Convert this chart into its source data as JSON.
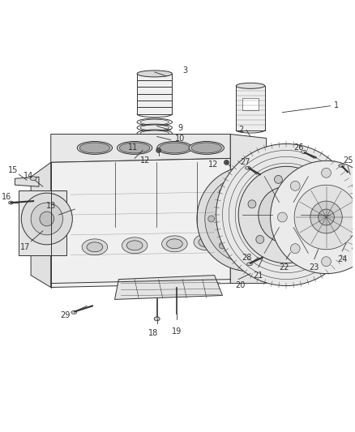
{
  "bg_color": "#ffffff",
  "line_color": "#333333",
  "label_color": "#000000",
  "fig_width": 4.38,
  "fig_height": 5.33,
  "dpi": 100,
  "label_fontsize": 7.0
}
